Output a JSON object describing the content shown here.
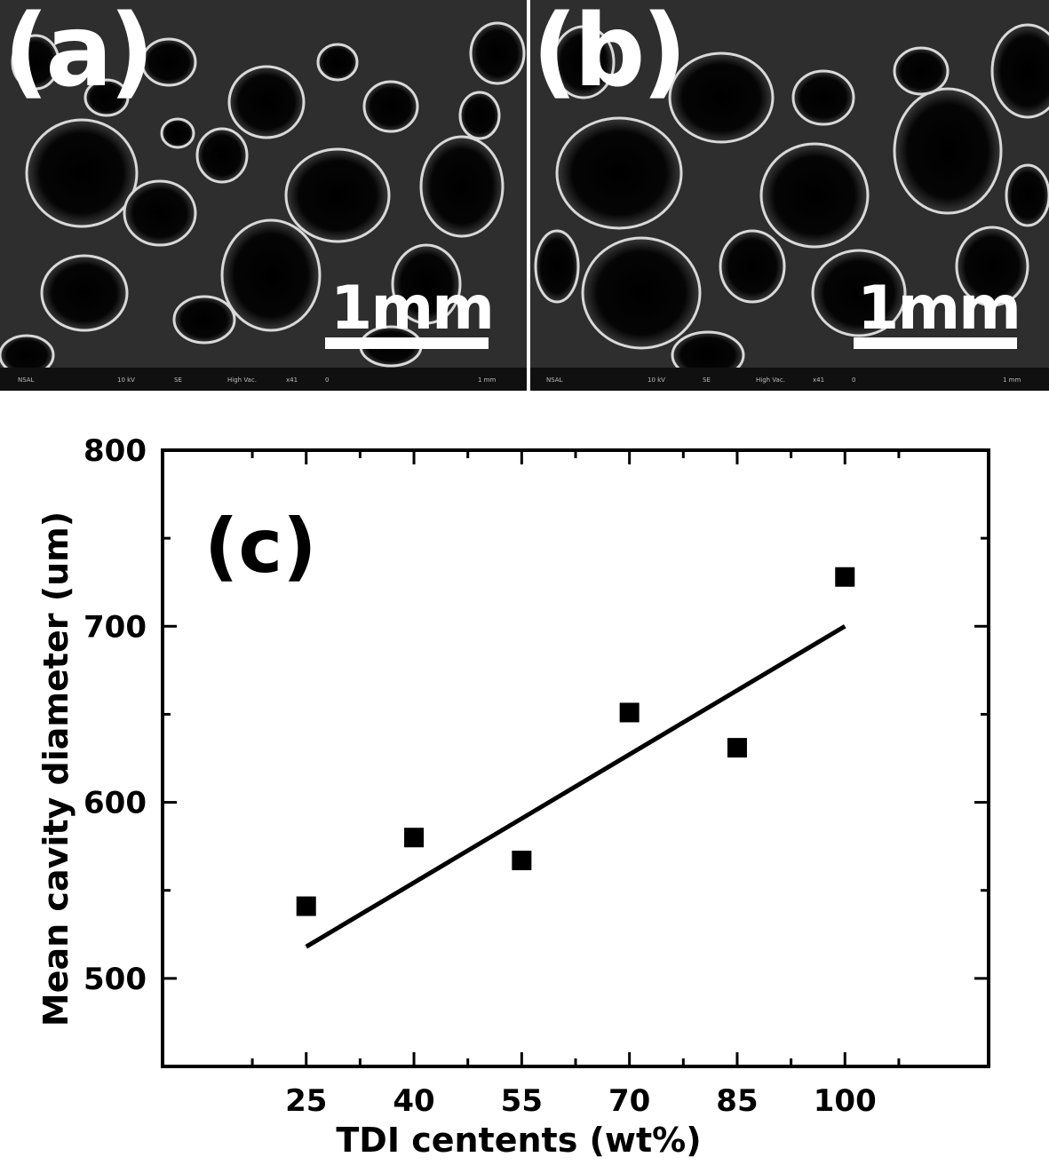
{
  "panels": [
    {
      "label": "(a)",
      "scale_bar_text": "1mm",
      "footer": {
        "lab": "NSAL",
        "voltage": "10 kV",
        "detector": "SE",
        "vacuum": "High Vac.",
        "magnification": "x41",
        "scale_start": "0",
        "scale_end": "1 mm"
      }
    },
    {
      "label": "(b)",
      "scale_bar_text": "1mm",
      "footer": {
        "lab": "NSAL",
        "voltage": "10 kV",
        "detector": "SE",
        "vacuum": "High Vac.",
        "magnification": "x41",
        "scale_start": "0",
        "scale_end": "1 mm"
      }
    }
  ],
  "chart_data": {
    "type": "scatter",
    "panel_label": "(c)",
    "title": "",
    "xlabel": "TDI centents (wt%)",
    "ylabel": "Mean cavity diameter (um)",
    "xlim": [
      5,
      120
    ],
    "ylim": [
      450,
      800
    ],
    "x_ticks": [
      25,
      40,
      55,
      70,
      85,
      100
    ],
    "y_ticks": [
      500,
      600,
      700,
      800
    ],
    "points": [
      {
        "x": 25,
        "y": 541
      },
      {
        "x": 40,
        "y": 580
      },
      {
        "x": 55,
        "y": 567
      },
      {
        "x": 70,
        "y": 651
      },
      {
        "x": 85,
        "y": 631
      },
      {
        "x": 100,
        "y": 728
      }
    ],
    "fit_line": {
      "x": [
        25,
        100
      ],
      "y": [
        518,
        700
      ]
    },
    "marker": "filled-square",
    "marker_color": "#000000",
    "line_color": "#000000",
    "grid": false,
    "legend": "none"
  }
}
